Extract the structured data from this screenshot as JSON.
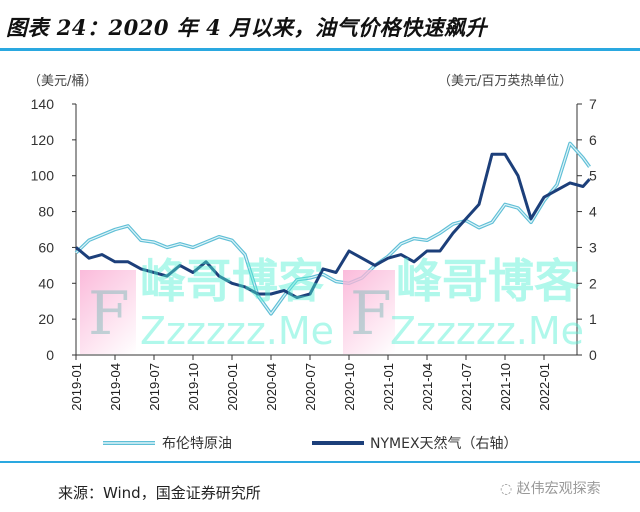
{
  "title": "图表 24：2020 年 4 月以来，油气价格快速飙升",
  "unit_left": "（美元/桶）",
  "unit_right": "（美元/百万英热单位）",
  "source": "来源：Wind，国金证券研究所",
  "wechat": "赵伟宏观探索",
  "watermark": {
    "cn": "峰哥博客",
    "en": "Zzzzzz.Me",
    "letter": "F"
  },
  "colors": {
    "brent": "#5fbfd6",
    "gas": "#1c3f7a",
    "rule": "#2aa8e0"
  },
  "chart_data": {
    "type": "line",
    "title": "图表 24：2020 年 4 月以来，油气价格快速飙升",
    "x_ticks": [
      "2019-01",
      "2019-04",
      "2019-07",
      "2019-10",
      "2020-01",
      "2020-04",
      "2020-07",
      "2020-10",
      "2021-01",
      "2021-04",
      "2021-07",
      "2021-10",
      "2022-01"
    ],
    "ylim_left": [
      0,
      140
    ],
    "yticks_left": [
      "0",
      "20",
      "40",
      "60",
      "80",
      "100",
      "120",
      "140"
    ],
    "ylim_right": [
      0,
      7
    ],
    "yticks_right": [
      "0",
      "1",
      "2",
      "3",
      "4",
      "5",
      "6",
      "7"
    ],
    "x_months": [
      0,
      1,
      2,
      3,
      4,
      5,
      6,
      7,
      8,
      9,
      10,
      11,
      12,
      13,
      14,
      15,
      16,
      17,
      18,
      19,
      20,
      21,
      22,
      23,
      24,
      25,
      26,
      27,
      28,
      29,
      30,
      31,
      32,
      33,
      34,
      35,
      36,
      37,
      38,
      39,
      39.5
    ],
    "series": [
      {
        "name": "布伦特原油",
        "axis": "left",
        "values": [
          57,
          64,
          67,
          70,
          72,
          64,
          63,
          60,
          62,
          60,
          63,
          66,
          64,
          56,
          33,
          23,
          33,
          42,
          43,
          45,
          41,
          40,
          43,
          50,
          55,
          62,
          65,
          64,
          68,
          73,
          75,
          71,
          74,
          84,
          82,
          74,
          86,
          95,
          118,
          110,
          105
        ]
      },
      {
        "name": "NYMEX天然气（右轴）",
        "axis": "right",
        "values": [
          3.0,
          2.7,
          2.8,
          2.6,
          2.6,
          2.4,
          2.3,
          2.2,
          2.5,
          2.3,
          2.6,
          2.2,
          2.0,
          1.9,
          1.7,
          1.7,
          1.8,
          1.6,
          1.7,
          2.4,
          2.3,
          2.9,
          2.7,
          2.5,
          2.7,
          2.8,
          2.6,
          2.9,
          2.9,
          3.4,
          3.8,
          4.2,
          5.6,
          5.6,
          5.0,
          3.8,
          4.4,
          4.6,
          4.8,
          4.7,
          4.9
        ]
      }
    ],
    "legend_position": "bottom",
    "grid": false
  }
}
